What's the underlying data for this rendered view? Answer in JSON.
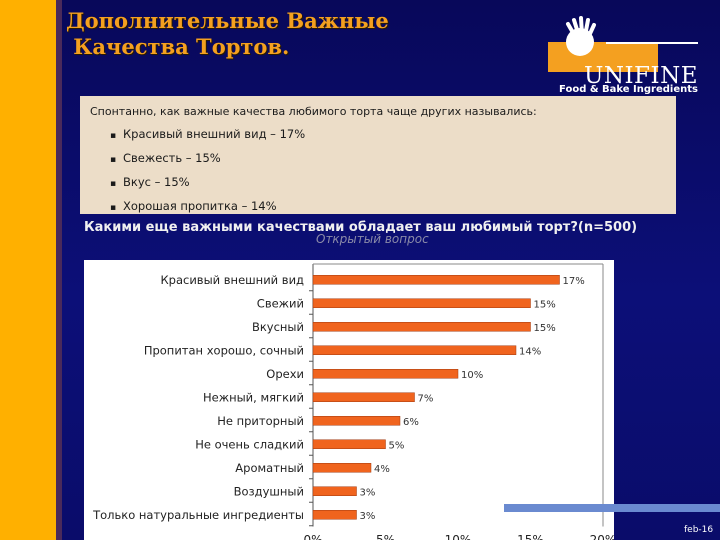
{
  "title": "Дополнительные Важные\n Качества Тортов.",
  "logo": {
    "brand": "UNIFINE",
    "tagline": "Food & Bake Ingredients"
  },
  "panel": {
    "question": "Спонтанно, как важные качества любимого торта чаще других назывались:",
    "items": [
      "Красивый внешний вид – 17%",
      "Свежесть – 15%",
      "Вкус – 15%",
      "Хорошая пропитка – 14%"
    ]
  },
  "question2": "Какими еще важными качествами обладает ваш любимый торт?(n=500)",
  "subquestion": "Открытый вопрос",
  "footer": {
    "date": "feb-16"
  },
  "colors": {
    "bar": "#f0641e",
    "title": "#f4a020",
    "stripe": "#ffb000"
  },
  "chart_data": {
    "type": "bar",
    "orientation": "horizontal",
    "categories": [
      "Красивый внешний вид",
      "Свежий",
      "Вкусный",
      "Пропитан хорошо, сочный",
      "Орехи",
      "Нежный, мягкий",
      "Не приторный",
      "Не очень сладкий",
      "Ароматный",
      "Воздушный",
      "Только натуральные ингредиенты"
    ],
    "values": [
      17,
      15,
      15,
      14,
      10,
      7,
      6,
      5,
      4,
      3,
      3
    ],
    "value_labels": [
      "17%",
      "15%",
      "15%",
      "14%",
      "10%",
      "7%",
      "6%",
      "5%",
      "4%",
      "3%",
      "3%"
    ],
    "xticks": [
      "0%",
      "5%",
      "10%",
      "15%",
      "20%"
    ],
    "xlim": [
      0,
      20
    ],
    "grid": false
  }
}
